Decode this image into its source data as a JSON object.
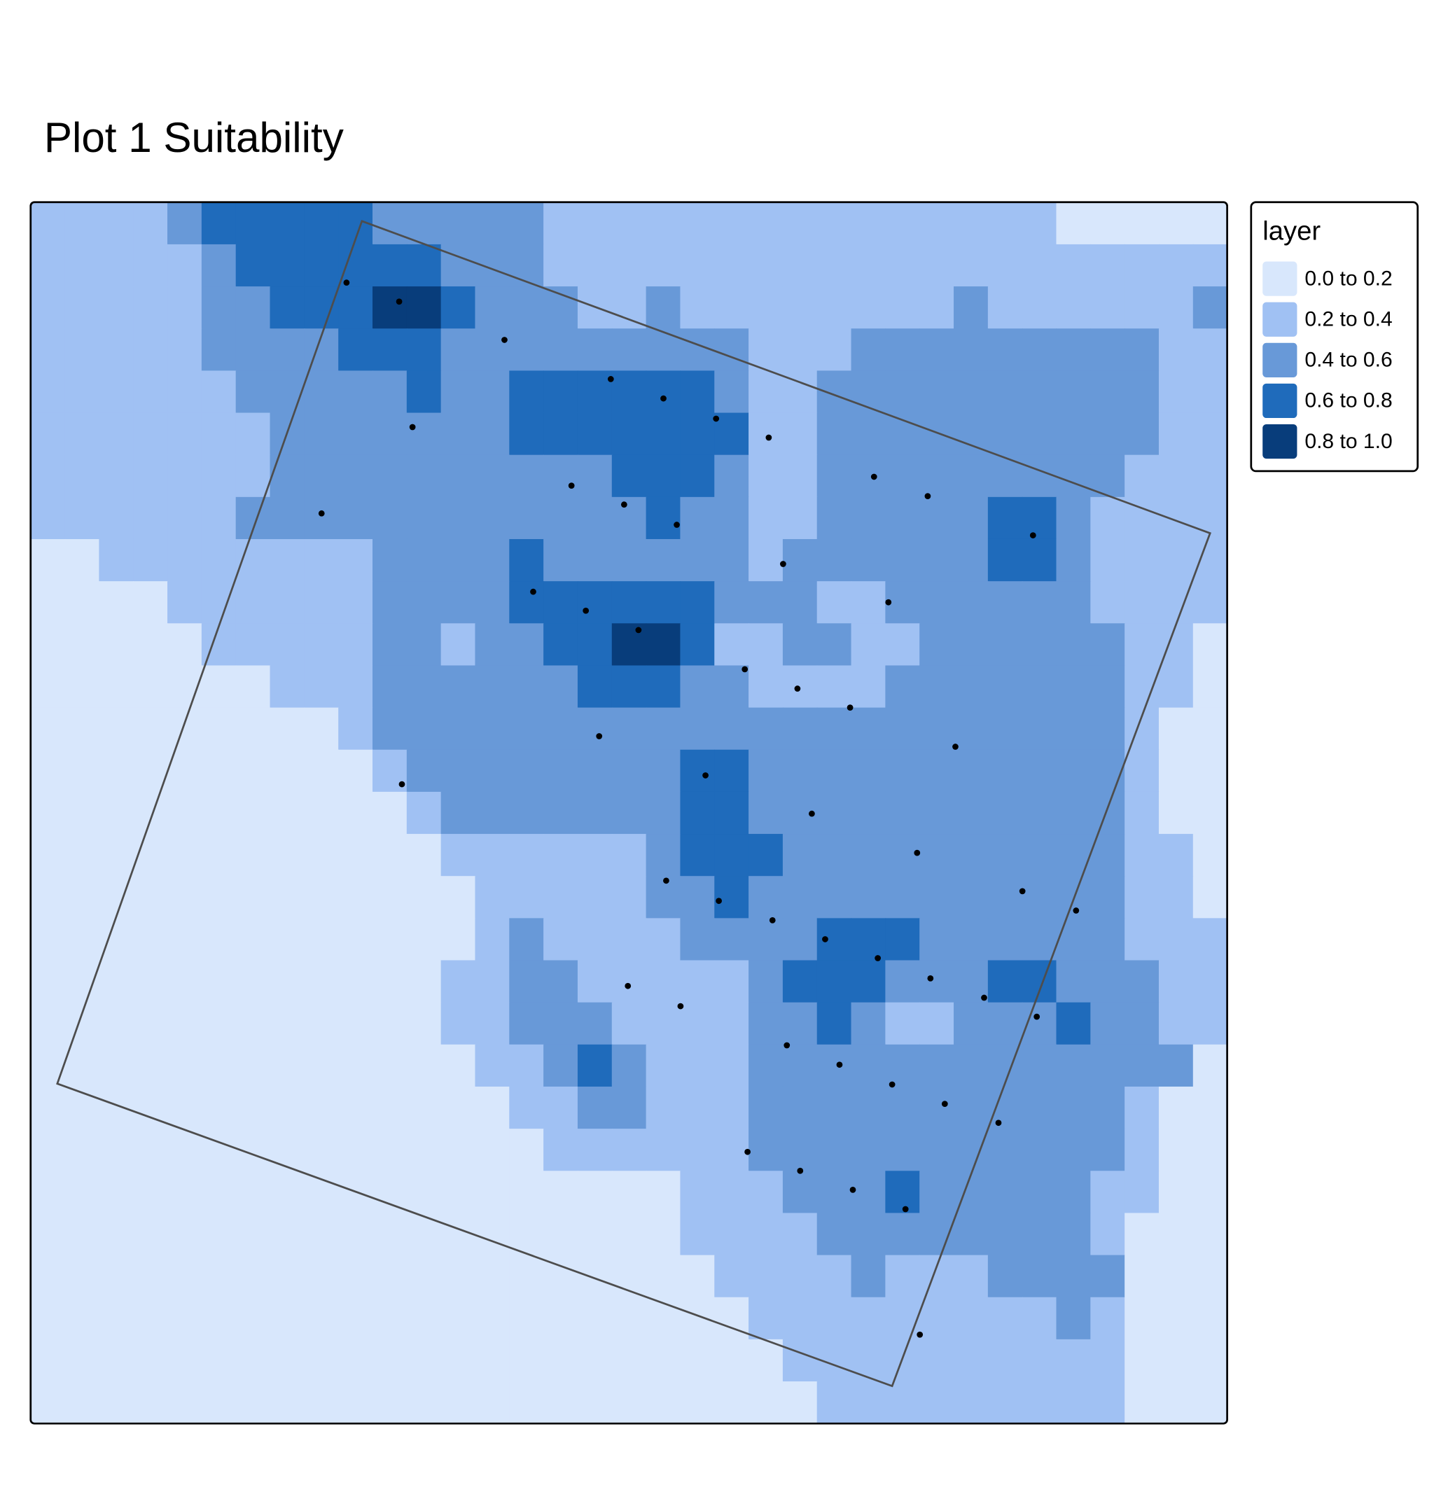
{
  "title": "Plot 1 Suitability",
  "map": {
    "extent": {
      "x": [
        0,
        35
      ],
      "y": [
        0,
        29
      ]
    },
    "grid": [
      [
        0.3,
        0.3,
        0.3,
        0.3,
        0.5,
        0.7,
        0.7,
        0.7,
        0.7,
        0.7,
        0.5,
        0.5,
        0.5,
        0.5,
        0.5,
        0.3,
        0.3,
        0.3,
        0.3,
        0.3,
        0.3,
        0.3,
        0.3,
        0.3,
        0.3,
        0.3,
        0.3,
        0.3,
        0.3,
        0.3,
        0.1,
        0.1,
        0.1,
        0.1,
        0.1
      ],
      [
        0.3,
        0.3,
        0.3,
        0.3,
        0.3,
        0.5,
        0.7,
        0.7,
        0.7,
        0.7,
        0.7,
        0.7,
        0.5,
        0.5,
        0.5,
        0.3,
        0.3,
        0.3,
        0.3,
        0.3,
        0.3,
        0.3,
        0.3,
        0.3,
        0.3,
        0.3,
        0.3,
        0.3,
        0.3,
        0.3,
        0.3,
        0.3,
        0.3,
        0.3,
        0.3
      ],
      [
        0.3,
        0.3,
        0.3,
        0.3,
        0.3,
        0.5,
        0.5,
        0.7,
        0.7,
        0.7,
        0.9,
        0.9,
        0.7,
        0.5,
        0.5,
        0.5,
        0.3,
        0.3,
        0.5,
        0.3,
        0.3,
        0.3,
        0.3,
        0.3,
        0.3,
        0.3,
        0.3,
        0.5,
        0.3,
        0.3,
        0.3,
        0.3,
        0.3,
        0.3,
        0.5
      ],
      [
        0.3,
        0.3,
        0.3,
        0.3,
        0.3,
        0.5,
        0.5,
        0.5,
        0.5,
        0.7,
        0.7,
        0.7,
        0.5,
        0.5,
        0.5,
        0.5,
        0.5,
        0.5,
        0.5,
        0.5,
        0.5,
        0.3,
        0.3,
        0.3,
        0.5,
        0.5,
        0.5,
        0.5,
        0.5,
        0.5,
        0.5,
        0.5,
        0.5,
        0.3,
        0.3
      ],
      [
        0.3,
        0.3,
        0.3,
        0.3,
        0.3,
        0.3,
        0.5,
        0.5,
        0.5,
        0.5,
        0.5,
        0.7,
        0.5,
        0.5,
        0.7,
        0.7,
        0.7,
        0.7,
        0.7,
        0.7,
        0.5,
        0.3,
        0.3,
        0.5,
        0.5,
        0.5,
        0.5,
        0.5,
        0.5,
        0.5,
        0.5,
        0.5,
        0.5,
        0.3,
        0.3
      ],
      [
        0.3,
        0.3,
        0.3,
        0.3,
        0.3,
        0.3,
        0.3,
        0.5,
        0.5,
        0.5,
        0.5,
        0.5,
        0.5,
        0.5,
        0.7,
        0.7,
        0.7,
        0.7,
        0.7,
        0.7,
        0.7,
        0.3,
        0.3,
        0.5,
        0.5,
        0.5,
        0.5,
        0.5,
        0.5,
        0.5,
        0.5,
        0.5,
        0.5,
        0.3,
        0.3
      ],
      [
        0.3,
        0.3,
        0.3,
        0.3,
        0.3,
        0.3,
        0.3,
        0.5,
        0.5,
        0.5,
        0.5,
        0.5,
        0.5,
        0.5,
        0.5,
        0.5,
        0.5,
        0.7,
        0.7,
        0.7,
        0.5,
        0.3,
        0.3,
        0.5,
        0.5,
        0.5,
        0.5,
        0.5,
        0.5,
        0.5,
        0.5,
        0.5,
        0.3,
        0.3,
        0.3
      ],
      [
        0.3,
        0.3,
        0.3,
        0.3,
        0.3,
        0.3,
        0.5,
        0.5,
        0.5,
        0.5,
        0.5,
        0.5,
        0.5,
        0.5,
        0.5,
        0.5,
        0.5,
        0.5,
        0.7,
        0.5,
        0.5,
        0.3,
        0.3,
        0.5,
        0.5,
        0.5,
        0.5,
        0.5,
        0.7,
        0.7,
        0.5,
        0.3,
        0.3,
        0.3,
        0.3
      ],
      [
        0.1,
        0.1,
        0.3,
        0.3,
        0.3,
        0.3,
        0.3,
        0.3,
        0.3,
        0.3,
        0.5,
        0.5,
        0.5,
        0.5,
        0.7,
        0.5,
        0.5,
        0.5,
        0.5,
        0.5,
        0.5,
        0.3,
        0.5,
        0.5,
        0.5,
        0.5,
        0.5,
        0.5,
        0.7,
        0.7,
        0.5,
        0.3,
        0.3,
        0.3,
        0.3
      ],
      [
        0.1,
        0.1,
        0.1,
        0.1,
        0.3,
        0.3,
        0.3,
        0.3,
        0.3,
        0.3,
        0.5,
        0.5,
        0.5,
        0.5,
        0.7,
        0.7,
        0.7,
        0.7,
        0.7,
        0.7,
        0.5,
        0.5,
        0.5,
        0.3,
        0.3,
        0.5,
        0.5,
        0.5,
        0.5,
        0.5,
        0.5,
        0.3,
        0.3,
        0.3,
        0.3
      ],
      [
        0.1,
        0.1,
        0.1,
        0.1,
        0.1,
        0.3,
        0.3,
        0.3,
        0.3,
        0.3,
        0.5,
        0.5,
        0.3,
        0.5,
        0.5,
        0.7,
        0.7,
        0.9,
        0.9,
        0.7,
        0.3,
        0.3,
        0.5,
        0.5,
        0.3,
        0.3,
        0.5,
        0.5,
        0.5,
        0.5,
        0.5,
        0.5,
        0.3,
        0.3,
        0.1
      ],
      [
        0.1,
        0.1,
        0.1,
        0.1,
        0.1,
        0.1,
        0.1,
        0.3,
        0.3,
        0.3,
        0.5,
        0.5,
        0.5,
        0.5,
        0.5,
        0.5,
        0.7,
        0.7,
        0.7,
        0.5,
        0.5,
        0.3,
        0.3,
        0.3,
        0.3,
        0.5,
        0.5,
        0.5,
        0.5,
        0.5,
        0.5,
        0.5,
        0.3,
        0.3,
        0.1
      ],
      [
        0.1,
        0.1,
        0.1,
        0.1,
        0.1,
        0.1,
        0.1,
        0.1,
        0.1,
        0.3,
        0.5,
        0.5,
        0.5,
        0.5,
        0.5,
        0.5,
        0.5,
        0.5,
        0.5,
        0.5,
        0.5,
        0.5,
        0.5,
        0.5,
        0.5,
        0.5,
        0.5,
        0.5,
        0.5,
        0.5,
        0.5,
        0.5,
        0.3,
        0.1,
        0.1
      ],
      [
        0.1,
        0.1,
        0.1,
        0.1,
        0.1,
        0.1,
        0.1,
        0.1,
        0.1,
        0.1,
        0.3,
        0.5,
        0.5,
        0.5,
        0.5,
        0.5,
        0.5,
        0.5,
        0.5,
        0.7,
        0.7,
        0.5,
        0.5,
        0.5,
        0.5,
        0.5,
        0.5,
        0.5,
        0.5,
        0.5,
        0.5,
        0.5,
        0.3,
        0.1,
        0.1
      ],
      [
        0.1,
        0.1,
        0.1,
        0.1,
        0.1,
        0.1,
        0.1,
        0.1,
        0.1,
        0.1,
        0.1,
        0.3,
        0.5,
        0.5,
        0.5,
        0.5,
        0.5,
        0.5,
        0.5,
        0.7,
        0.7,
        0.5,
        0.5,
        0.5,
        0.5,
        0.5,
        0.5,
        0.5,
        0.5,
        0.5,
        0.5,
        0.5,
        0.3,
        0.1,
        0.1
      ],
      [
        0.1,
        0.1,
        0.1,
        0.1,
        0.1,
        0.1,
        0.1,
        0.1,
        0.1,
        0.1,
        0.1,
        0.1,
        0.3,
        0.3,
        0.3,
        0.3,
        0.3,
        0.3,
        0.5,
        0.7,
        0.7,
        0.7,
        0.5,
        0.5,
        0.5,
        0.5,
        0.5,
        0.5,
        0.5,
        0.5,
        0.5,
        0.5,
        0.3,
        0.3,
        0.1
      ],
      [
        0.1,
        0.1,
        0.1,
        0.1,
        0.1,
        0.1,
        0.1,
        0.1,
        0.1,
        0.1,
        0.1,
        0.1,
        0.1,
        0.3,
        0.3,
        0.3,
        0.3,
        0.3,
        0.5,
        0.5,
        0.7,
        0.5,
        0.5,
        0.5,
        0.5,
        0.5,
        0.5,
        0.5,
        0.5,
        0.5,
        0.5,
        0.5,
        0.3,
        0.3,
        0.1
      ],
      [
        0.1,
        0.1,
        0.1,
        0.1,
        0.1,
        0.1,
        0.1,
        0.1,
        0.1,
        0.1,
        0.1,
        0.1,
        0.1,
        0.3,
        0.5,
        0.3,
        0.3,
        0.3,
        0.3,
        0.5,
        0.5,
        0.5,
        0.5,
        0.7,
        0.7,
        0.7,
        0.5,
        0.5,
        0.5,
        0.5,
        0.5,
        0.5,
        0.3,
        0.3,
        0.3
      ],
      [
        0.1,
        0.1,
        0.1,
        0.1,
        0.1,
        0.1,
        0.1,
        0.1,
        0.1,
        0.1,
        0.1,
        0.1,
        0.3,
        0.3,
        0.5,
        0.5,
        0.3,
        0.3,
        0.3,
        0.3,
        0.3,
        0.5,
        0.7,
        0.7,
        0.7,
        0.5,
        0.5,
        0.5,
        0.7,
        0.7,
        0.5,
        0.5,
        0.5,
        0.3,
        0.3
      ],
      [
        0.1,
        0.1,
        0.1,
        0.1,
        0.1,
        0.1,
        0.1,
        0.1,
        0.1,
        0.1,
        0.1,
        0.1,
        0.3,
        0.3,
        0.5,
        0.5,
        0.5,
        0.3,
        0.3,
        0.3,
        0.3,
        0.5,
        0.5,
        0.7,
        0.5,
        0.3,
        0.3,
        0.5,
        0.5,
        0.5,
        0.7,
        0.5,
        0.5,
        0.3,
        0.3
      ],
      [
        0.1,
        0.1,
        0.1,
        0.1,
        0.1,
        0.1,
        0.1,
        0.1,
        0.1,
        0.1,
        0.1,
        0.1,
        0.1,
        0.3,
        0.3,
        0.5,
        0.7,
        0.5,
        0.3,
        0.3,
        0.3,
        0.5,
        0.5,
        0.5,
        0.5,
        0.5,
        0.5,
        0.5,
        0.5,
        0.5,
        0.5,
        0.5,
        0.5,
        0.5,
        0.1
      ],
      [
        0.1,
        0.1,
        0.1,
        0.1,
        0.1,
        0.1,
        0.1,
        0.1,
        0.1,
        0.1,
        0.1,
        0.1,
        0.1,
        0.1,
        0.3,
        0.3,
        0.5,
        0.5,
        0.3,
        0.3,
        0.3,
        0.5,
        0.5,
        0.5,
        0.5,
        0.5,
        0.5,
        0.5,
        0.5,
        0.5,
        0.5,
        0.5,
        0.3,
        0.1,
        0.1
      ],
      [
        0.1,
        0.1,
        0.1,
        0.1,
        0.1,
        0.1,
        0.1,
        0.1,
        0.1,
        0.1,
        0.1,
        0.1,
        0.1,
        0.1,
        0.1,
        0.3,
        0.3,
        0.3,
        0.3,
        0.3,
        0.3,
        0.5,
        0.5,
        0.5,
        0.5,
        0.5,
        0.5,
        0.5,
        0.5,
        0.5,
        0.5,
        0.5,
        0.3,
        0.1,
        0.1
      ],
      [
        0.1,
        0.1,
        0.1,
        0.1,
        0.1,
        0.1,
        0.1,
        0.1,
        0.1,
        0.1,
        0.1,
        0.1,
        0.1,
        0.1,
        0.1,
        0.1,
        0.1,
        0.1,
        0.1,
        0.3,
        0.3,
        0.3,
        0.5,
        0.5,
        0.5,
        0.7,
        0.5,
        0.5,
        0.5,
        0.5,
        0.5,
        0.3,
        0.3,
        0.1,
        0.1
      ],
      [
        0.1,
        0.1,
        0.1,
        0.1,
        0.1,
        0.1,
        0.1,
        0.1,
        0.1,
        0.1,
        0.1,
        0.1,
        0.1,
        0.1,
        0.1,
        0.1,
        0.1,
        0.1,
        0.1,
        0.3,
        0.3,
        0.3,
        0.3,
        0.5,
        0.5,
        0.5,
        0.5,
        0.5,
        0.5,
        0.5,
        0.5,
        0.3,
        0.1,
        0.1,
        0.1
      ],
      [
        0.1,
        0.1,
        0.1,
        0.1,
        0.1,
        0.1,
        0.1,
        0.1,
        0.1,
        0.1,
        0.1,
        0.1,
        0.1,
        0.1,
        0.1,
        0.1,
        0.1,
        0.1,
        0.1,
        0.1,
        0.3,
        0.3,
        0.3,
        0.3,
        0.5,
        0.3,
        0.3,
        0.3,
        0.5,
        0.5,
        0.5,
        0.5,
        0.1,
        0.1,
        0.1
      ],
      [
        0.1,
        0.1,
        0.1,
        0.1,
        0.1,
        0.1,
        0.1,
        0.1,
        0.1,
        0.1,
        0.1,
        0.1,
        0.1,
        0.1,
        0.1,
        0.1,
        0.1,
        0.1,
        0.1,
        0.1,
        0.1,
        0.3,
        0.3,
        0.3,
        0.3,
        0.3,
        0.3,
        0.3,
        0.3,
        0.3,
        0.5,
        0.3,
        0.1,
        0.1,
        0.1
      ],
      [
        0.1,
        0.1,
        0.1,
        0.1,
        0.1,
        0.1,
        0.1,
        0.1,
        0.1,
        0.1,
        0.1,
        0.1,
        0.1,
        0.1,
        0.1,
        0.1,
        0.1,
        0.1,
        0.1,
        0.1,
        0.1,
        0.1,
        0.3,
        0.3,
        0.3,
        0.3,
        0.3,
        0.3,
        0.3,
        0.3,
        0.3,
        0.3,
        0.1,
        0.1,
        0.1
      ],
      [
        0.1,
        0.1,
        0.1,
        0.1,
        0.1,
        0.1,
        0.1,
        0.1,
        0.1,
        0.1,
        0.1,
        0.1,
        0.1,
        0.1,
        0.1,
        0.1,
        0.1,
        0.1,
        0.1,
        0.1,
        0.1,
        0.1,
        0.1,
        0.3,
        0.3,
        0.3,
        0.3,
        0.3,
        0.3,
        0.3,
        0.3,
        0.3,
        0.1,
        0.1,
        0.1
      ]
    ],
    "points": {
      "color": "#000000",
      "x": [
        9.24,
        10.78,
        13.86,
        16.97,
        18.51,
        20.05,
        11.17,
        21.59,
        24.67,
        26.24,
        15.82,
        17.36,
        18.9,
        8.51,
        29.32,
        22.01,
        14.7,
        16.24,
        17.78,
        25.09,
        20.89,
        22.43,
        23.97,
        16.63,
        27.05,
        19.74,
        10.86,
        22.85,
        25.93,
        29.01,
        18.59,
        20.13,
        30.58,
        21.7,
        23.24,
        24.78,
        26.32,
        27.89,
        17.47,
        19.01,
        29.43,
        22.12,
        23.66,
        25.2,
        26.74,
        28.31,
        20.97,
        22.51,
        24.05,
        25.59,
        26.01
      ],
      "y": [
        1.91,
        2.36,
        3.27,
        4.2,
        4.66,
        5.14,
        5.34,
        5.59,
        6.52,
        6.98,
        6.73,
        7.18,
        7.66,
        7.39,
        7.91,
        8.59,
        9.25,
        9.7,
        10.16,
        9.5,
        11.09,
        11.55,
        12.0,
        12.68,
        12.93,
        13.61,
        13.82,
        14.52,
        15.45,
        16.36,
        16.11,
        16.59,
        16.82,
        17.05,
        17.5,
        17.95,
        18.43,
        18.89,
        18.61,
        19.09,
        19.34,
        20.02,
        20.48,
        20.95,
        21.41,
        21.86,
        22.55,
        23.0,
        23.45,
        23.91,
        26.89
      ]
    },
    "boundary": {
      "color": "#4d4d4d",
      "x": [
        9.69,
        34.5,
        25.2,
        0.78
      ],
      "y": [
        0.45,
        7.86,
        28.11,
        20.93
      ]
    }
  },
  "legend": {
    "title": "layer",
    "breaks": [
      0,
      0.2,
      0.4,
      0.6,
      0.8,
      1
    ],
    "items": [
      {
        "label": "0.0 to 0.2",
        "color": "#d8e7fc"
      },
      {
        "label": "0.2 to 0.4",
        "color": "#a0c1f3"
      },
      {
        "label": "0.4 to 0.6",
        "color": "#6899d8"
      },
      {
        "label": "0.6 to 0.8",
        "color": "#1f6bbb"
      },
      {
        "label": "0.8 to 1.0",
        "color": "#083d7b"
      }
    ]
  }
}
